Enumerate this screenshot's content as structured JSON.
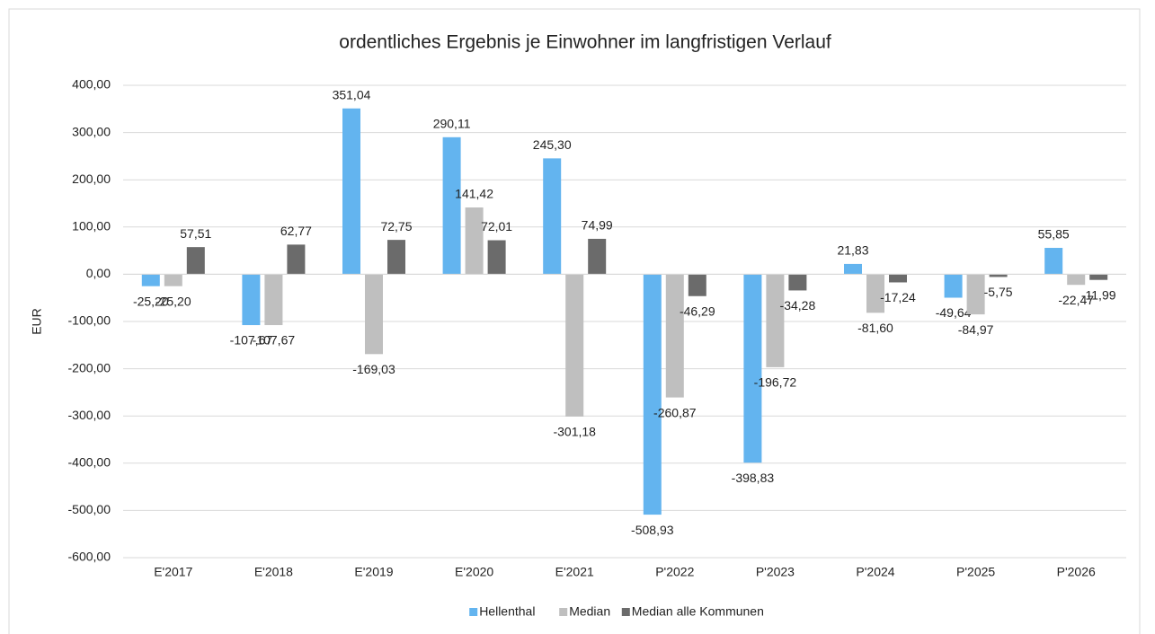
{
  "chart_data": {
    "type": "bar",
    "title": "ordentliches Ergebnis je Einwohner im langfristigen Verlauf",
    "y_label": "EUR",
    "categories": [
      "E'2017",
      "E'2018",
      "E'2019",
      "E'2020",
      "E'2021",
      "P'2022",
      "P'2023",
      "P'2024",
      "P'2025",
      "P'2026"
    ],
    "series": [
      {
        "name": "Hellenthal",
        "color": "#63b4ef",
        "values": [
          -25.2,
          -107.67,
          351.04,
          290.11,
          245.3,
          -508.93,
          -398.83,
          21.83,
          -49.64,
          55.85
        ],
        "value_labels": [
          "-25,20",
          "-107,67",
          "351,04",
          "290,11",
          "245,30",
          "-508,93",
          "-398,83",
          "21,83",
          "-49,64",
          "55,85"
        ]
      },
      {
        "name": "Median",
        "color": "#bfbfbf",
        "values": [
          -25.2,
          -107.67,
          -169.03,
          141.42,
          -301.18,
          -260.87,
          -196.72,
          -81.6,
          -84.97,
          -22.47
        ],
        "value_labels": [
          "-25,20",
          "-107,67",
          "-169,03",
          "141,42",
          "-301,18",
          "-260,87",
          "-196,72",
          "-81,60",
          "-84,97",
          "-22,47"
        ]
      },
      {
        "name": "Median alle Kommunen",
        "color": "#6b6b6b",
        "values": [
          57.51,
          62.77,
          72.75,
          72.01,
          74.99,
          -46.29,
          -34.28,
          -17.24,
          -5.75,
          -11.99
        ],
        "value_labels": [
          "57,51",
          "62,77",
          "72,75",
          "72,01",
          "74,99",
          "-46,29",
          "-34,28",
          "-17,24",
          "-5,75",
          "-11,99"
        ]
      }
    ],
    "ylim": [
      -600,
      400
    ],
    "yticks": [
      {
        "value": 400,
        "label": "400,00"
      },
      {
        "value": 300,
        "label": "300,00"
      },
      {
        "value": 200,
        "label": "200,00"
      },
      {
        "value": 100,
        "label": "100,00"
      },
      {
        "value": 0,
        "label": "0,00"
      },
      {
        "value": -100,
        "label": "-100,00"
      },
      {
        "value": -200,
        "label": "-200,00"
      },
      {
        "value": -300,
        "label": "-300,00"
      },
      {
        "value": -400,
        "label": "-400,00"
      },
      {
        "value": -500,
        "label": "-500,00"
      },
      {
        "value": -600,
        "label": "-600,00"
      }
    ],
    "grid": true,
    "legend": "bottom"
  }
}
